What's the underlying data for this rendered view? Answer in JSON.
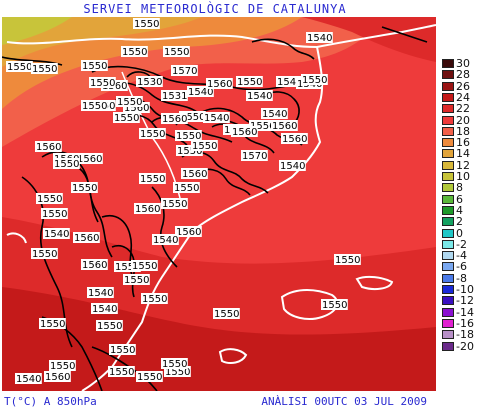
{
  "header": {
    "title": "SERVEI METEOROLÒGIC DE CATALUNYA"
  },
  "footer": {
    "left": "T(°C) A 850hPa",
    "right": "ANÀLISI 00UTC 03 JUL 2009"
  },
  "legend": [
    {
      "value": "30",
      "color": "#3a0a0a"
    },
    {
      "value": "28",
      "color": "#6e1010"
    },
    {
      "value": "26",
      "color": "#9a1414"
    },
    {
      "value": "24",
      "color": "#c41a1a"
    },
    {
      "value": "22",
      "color": "#dd2a2a"
    },
    {
      "value": "20",
      "color": "#ee3b3b"
    },
    {
      "value": "18",
      "color": "#f2604a"
    },
    {
      "value": "16",
      "color": "#ee8a3c"
    },
    {
      "value": "14",
      "color": "#e2a43a"
    },
    {
      "value": "12",
      "color": "#d8b83a"
    },
    {
      "value": "10",
      "color": "#c8c43a"
    },
    {
      "value": "8",
      "color": "#b0c83a"
    },
    {
      "value": "6",
      "color": "#5ab83a"
    },
    {
      "value": "4",
      "color": "#1e9a2a"
    },
    {
      "value": "2",
      "color": "#14a060"
    },
    {
      "value": "0",
      "color": "#20c8c8"
    },
    {
      "value": "-2",
      "color": "#7ae8e8"
    },
    {
      "value": "-4",
      "color": "#b0d8f0"
    },
    {
      "value": "-6",
      "color": "#7aa8f0"
    },
    {
      "value": "-8",
      "color": "#4a7ae8"
    },
    {
      "value": "-10",
      "color": "#1a2ad8"
    },
    {
      "value": "-12",
      "color": "#3a10c0"
    },
    {
      "value": "-14",
      "color": "#8a10d0"
    },
    {
      "value": "-16",
      "color": "#e020d0"
    },
    {
      "value": "-18",
      "color": "#b890c8"
    },
    {
      "value": "-20",
      "color": "#6a2a8a"
    }
  ],
  "contour_labels": [
    "1550",
    "1550",
    "1550",
    "1550",
    "1550",
    "1550",
    "1560",
    "1550",
    "1560",
    "1570",
    "1540",
    "1530",
    "1531",
    "1540",
    "1560",
    "1550",
    "1540",
    "1540",
    "1550",
    "1550",
    "1550",
    "1540",
    "1560",
    "1556",
    "1560",
    "1550",
    "1550",
    "1560",
    "1560",
    "1560",
    "1570",
    "1560",
    "1550",
    "1540",
    "1550",
    "1560",
    "1560",
    "1560",
    "1550",
    "1550",
    "1550",
    "1560",
    "1550",
    "1540",
    "1560",
    "1540",
    "1560",
    "1550",
    "1550",
    "1560",
    "1550",
    "1540",
    "1550",
    "1550",
    "1540",
    "1550",
    "1550",
    "1550",
    "1550",
    "1550",
    "1550",
    "1550",
    "1550",
    "1550",
    "1540",
    "1560",
    "1550",
    "1550",
    "1540",
    "1550",
    "1540",
    "1550",
    "1550",
    "1550",
    "1550",
    "1550"
  ]
}
